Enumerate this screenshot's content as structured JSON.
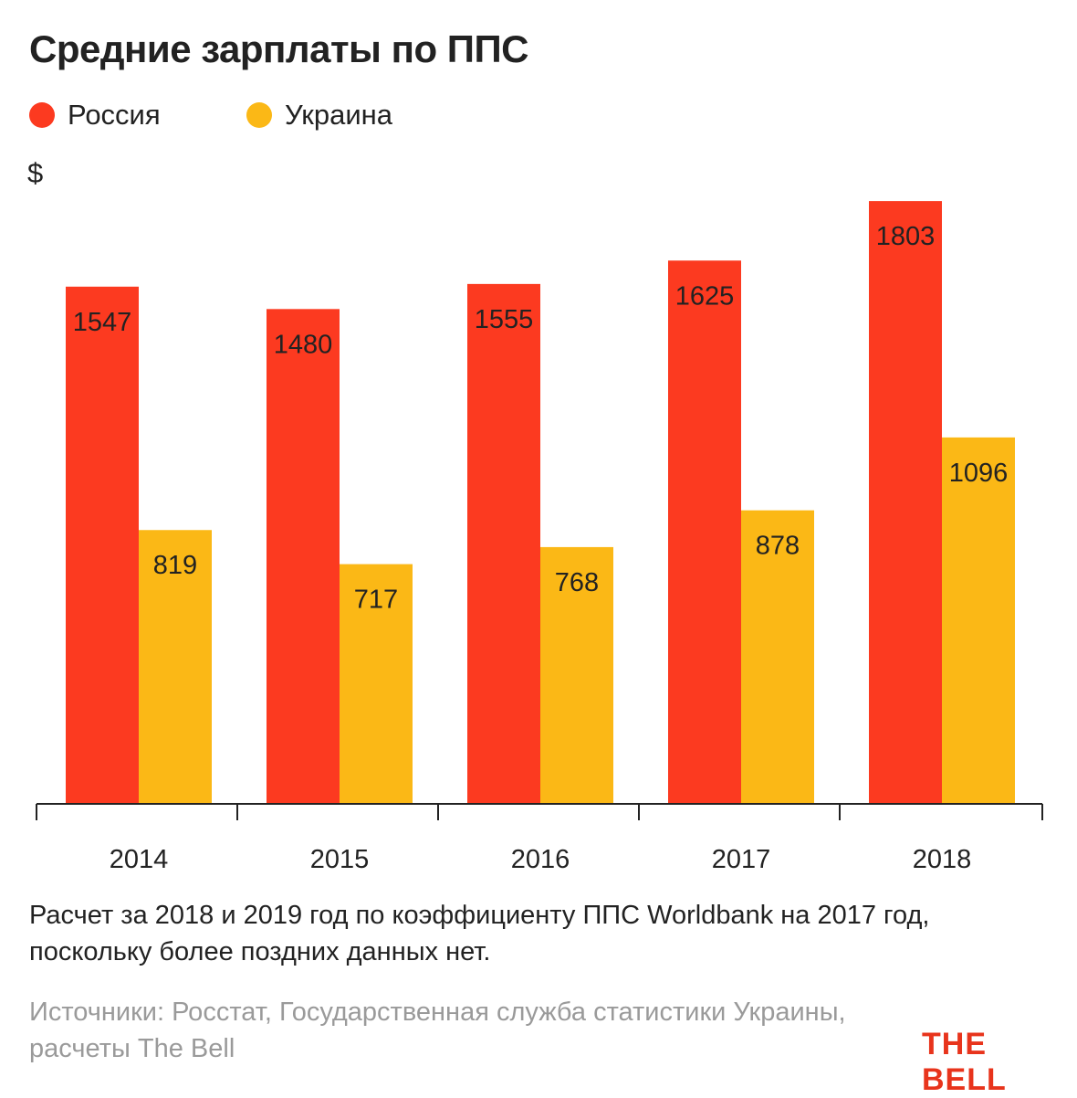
{
  "title": "Средние зарплаты по ППС",
  "unit": "$",
  "colors": {
    "russia": "#fc3a20",
    "ukraine": "#fbb816",
    "logo": "#e8341c",
    "axis": "#222222"
  },
  "chart_data": {
    "type": "bar",
    "categories": [
      "2014",
      "2015",
      "2016",
      "2017",
      "2018"
    ],
    "series": [
      {
        "name": "Россия",
        "color": "#fc3a20",
        "values": [
          1547,
          1480,
          1555,
          1625,
          1803
        ]
      },
      {
        "name": "Украина",
        "color": "#fbb816",
        "values": [
          819,
          717,
          768,
          878,
          1096
        ]
      }
    ],
    "ylabel": "$",
    "ylim": [
      0,
      2000
    ],
    "grid": false,
    "legend": "top-left"
  },
  "note": "Расчет за 2018 и 2019 год по коэффициенту ППС Worldbank на 2017 год, поскольку более поздних данных нет.",
  "source": "Источники: Росстат, Государственная служба статистики Украины, расчеты The Bell",
  "logo": "THE BELL"
}
